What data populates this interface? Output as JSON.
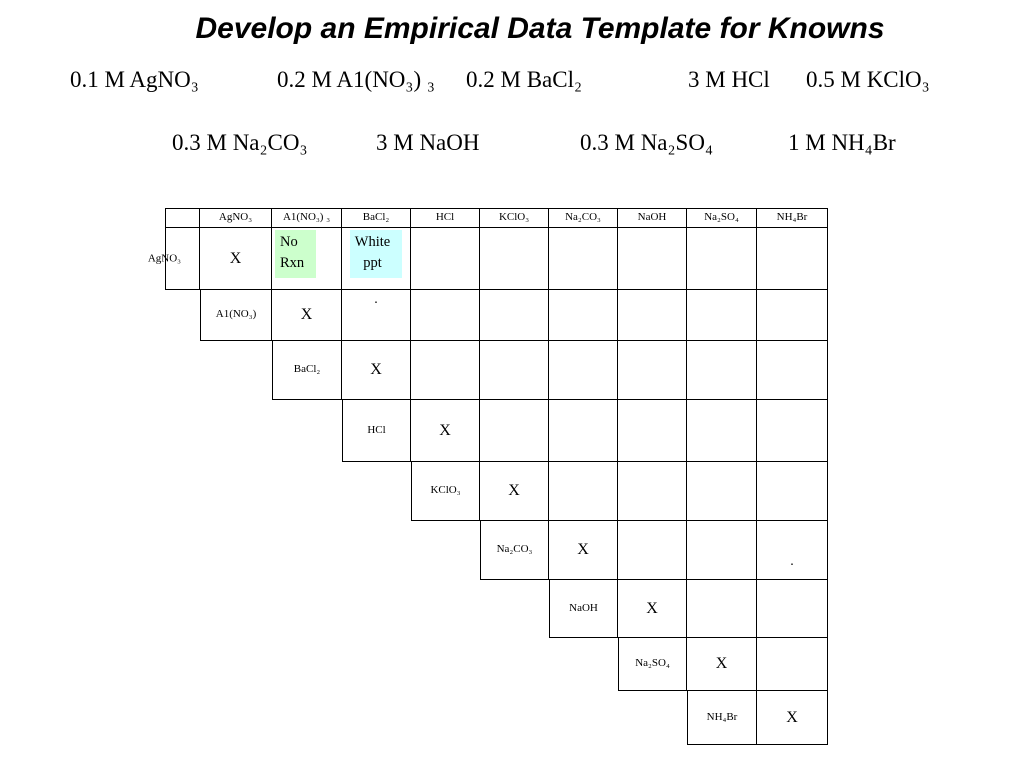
{
  "title": "Develop an Empirical Data Template for Knowns",
  "solutions": {
    "line1": [
      "0.1 M AgNO₃",
      "0.2 M A1(NO₃) ₃",
      "0.2 M BaCl₂",
      "3 M HCl",
      "0.5 M KClO₃"
    ],
    "line2": [
      "0.3 M Na₂CO₃",
      "3 M NaOH",
      "0.3 M Na₂SO₄",
      "1 M NH₄Br"
    ]
  },
  "matrix": {
    "headers": [
      "",
      "AgNO₃",
      "A1(NO₃) ₃",
      "BaCl₂",
      "HCl",
      "KClO₃",
      "Na₂CO₃",
      "NaOH",
      "Na₂SO₄",
      "NH₄Br"
    ],
    "highlight_colors": {
      "no_rxn": "#ccffcc",
      "white_ppt": "#ccffff"
    },
    "rows": [
      {
        "label": "AgNO₃",
        "cells": [
          "X",
          {
            "text": "No\nRxn",
            "bg": "#ccffcc",
            "pos": "top-left"
          },
          {
            "text": "White\nppt",
            "bg": "#ccffff",
            "pos": "top"
          },
          "",
          "",
          "",
          "",
          "",
          ""
        ]
      },
      {
        "label": "A1(NO₃)",
        "cells": [
          "X",
          {
            "text": ".",
            "pos": "top"
          },
          "",
          "",
          "",
          "",
          "",
          ""
        ]
      },
      {
        "label": "BaCl₂",
        "cells": [
          "X",
          "",
          "",
          "",
          "",
          "",
          ""
        ]
      },
      {
        "label": "HCl",
        "cells": [
          "X",
          "",
          "",
          "",
          "",
          ""
        ]
      },
      {
        "label": "KClO₃",
        "cells": [
          "X",
          "",
          "",
          "",
          ""
        ]
      },
      {
        "label": "Na₂CO₃",
        "cells": [
          "X",
          "",
          "",
          {
            "text": ".",
            "pos": "low"
          }
        ]
      },
      {
        "label": "NaOH",
        "cells": [
          "X",
          "",
          ""
        ]
      },
      {
        "label": "Na₂SO₄",
        "cells": [
          "X",
          ""
        ]
      },
      {
        "label": "NH₄Br",
        "cells": [
          "X"
        ]
      }
    ]
  }
}
